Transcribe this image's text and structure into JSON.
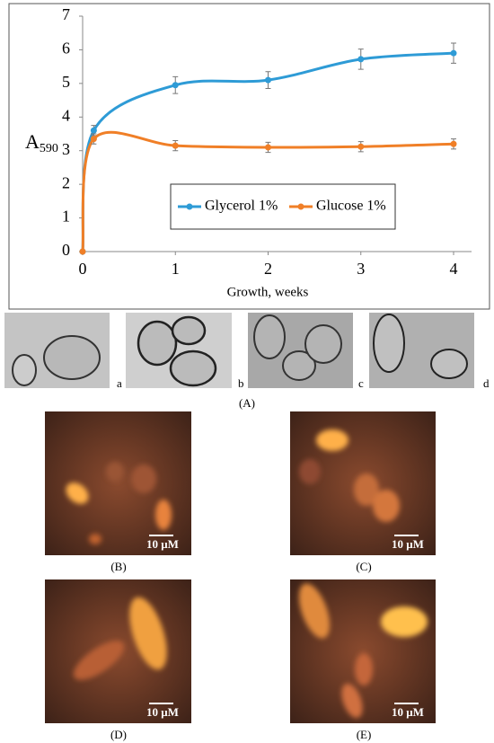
{
  "chart_data": {
    "type": "line",
    "ylabel": "A",
    "ylabel_subscript": "590",
    "xlabel": "Growth, weeks",
    "x": [
      0,
      0.12,
      1,
      2,
      3,
      4
    ],
    "series": [
      {
        "name": "Glycerol 1%",
        "color": "#2e9bd6",
        "values": [
          0,
          3.6,
          4.95,
          5.1,
          5.72,
          5.9
        ],
        "errors": [
          null,
          0.15,
          0.25,
          0.25,
          0.3,
          0.3
        ]
      },
      {
        "name": "Glucose 1%",
        "color": "#f07f27",
        "values": [
          0,
          3.35,
          3.15,
          3.1,
          3.12,
          3.2
        ],
        "errors": [
          null,
          0.15,
          0.15,
          0.15,
          0.15,
          0.15
        ]
      }
    ],
    "xlim": [
      0,
      4
    ],
    "ylim": [
      0,
      7
    ],
    "xticks": [
      0,
      1,
      2,
      3,
      4
    ],
    "yticks": [
      0,
      1,
      2,
      3,
      4,
      5,
      6,
      7
    ],
    "smooth": true,
    "legend": "center"
  },
  "figure": {
    "micrographs": [
      "a",
      "b",
      "c",
      "d"
    ],
    "micrograph_caption": "(A)",
    "fluorescence": [
      {
        "caption": "(B)",
        "scale": "10 μM"
      },
      {
        "caption": "(C)",
        "scale": "10 μM"
      },
      {
        "caption": "(D)",
        "scale": "10 μM"
      },
      {
        "caption": "(E)",
        "scale": "10 μM"
      }
    ]
  }
}
